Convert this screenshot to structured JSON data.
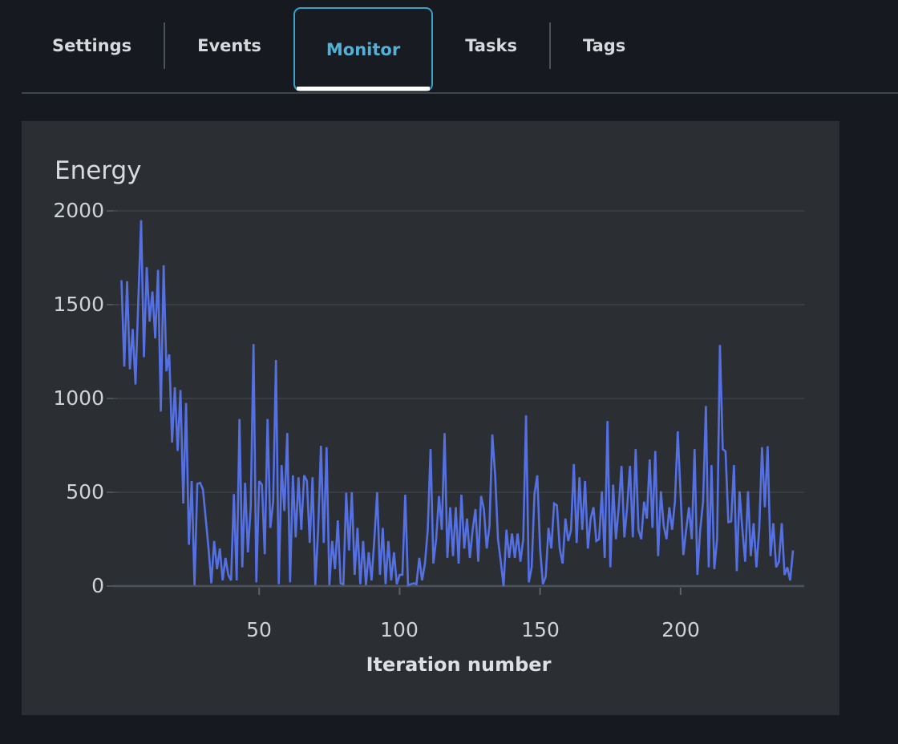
{
  "tabs": [
    {
      "label": "Settings",
      "active": false
    },
    {
      "label": "Events",
      "active": false
    },
    {
      "label": "Monitor",
      "active": true
    },
    {
      "label": "Tasks",
      "active": false
    },
    {
      "label": "Tags",
      "active": false
    }
  ],
  "colors": {
    "accent_cyan": "#52b1d4",
    "focus_border": "#3ba2c6",
    "active_indicator": "#ffffff",
    "panel_bg": "#2b2f34",
    "page_bg": "#16191f",
    "line": "#5470e2",
    "gridline": "#3c4148",
    "zero_line": "#4d535b",
    "tick": "#5c636b"
  },
  "chart_data": {
    "type": "line",
    "title": "Energy",
    "xlabel": "Iteration number",
    "ylabel": "",
    "ylim": [
      0,
      2000
    ],
    "xlim": [
      -2,
      244
    ],
    "x_start": 1,
    "yticks": [
      0,
      500,
      1000,
      1500,
      2000
    ],
    "xticks": [
      50,
      100,
      150,
      200
    ],
    "grid": true,
    "legend": "none",
    "series": [
      {
        "name": "Energy",
        "color": "#5470e2",
        "values": [
          1630,
          1170,
          1625,
          1155,
          1370,
          1075,
          1520,
          1950,
          1220,
          1700,
          1410,
          1570,
          1320,
          1685,
          930,
          1710,
          1145,
          1235,
          765,
          1060,
          720,
          1045,
          440,
          975,
          220,
          560,
          5,
          545,
          550,
          515,
          360,
          200,
          15,
          240,
          90,
          200,
          30,
          150,
          60,
          30,
          490,
          30,
          890,
          100,
          550,
          180,
          420,
          1290,
          20,
          560,
          540,
          170,
          890,
          310,
          450,
          1205,
          10,
          645,
          400,
          816,
          20,
          590,
          260,
          580,
          300,
          590,
          560,
          230,
          580,
          5,
          300,
          748,
          230,
          740,
          5,
          240,
          90,
          350,
          15,
          10,
          497,
          190,
          500,
          60,
          310,
          10,
          240,
          5,
          180,
          30,
          250,
          500,
          60,
          310,
          10,
          240,
          30,
          180,
          10,
          60,
          60,
          487,
          5,
          10,
          15,
          10,
          150,
          30,
          120,
          300,
          730,
          120,
          250,
          480,
          300,
          815,
          150,
          420,
          160,
          420,
          120,
          487,
          200,
          360,
          150,
          300,
          410,
          130,
          480,
          410,
          200,
          320,
          808,
          589,
          250,
          130,
          0,
          300,
          150,
          280,
          150,
          280,
          130,
          250,
          910,
          20,
          100,
          490,
          590,
          200,
          10,
          50,
          310,
          200,
          440,
          430,
          200,
          120,
          360,
          240,
          300,
          650,
          230,
          580,
          300,
          560,
          200,
          360,
          420,
          240,
          250,
          505,
          150,
          880,
          100,
          540,
          250,
          420,
          640,
          260,
          420,
          640,
          260,
          730,
          300,
          250,
          450,
          360,
          675,
          310,
          720,
          160,
          505,
          320,
          250,
          420,
          300,
          450,
          825,
          490,
          165,
          300,
          420,
          250,
          730,
          60,
          300,
          450,
          960,
          100,
          645,
          90,
          250,
          1285,
          730,
          718,
          340,
          345,
          645,
          80,
          505,
          300,
          130,
          505,
          160,
          335,
          100,
          300,
          740,
          420,
          745,
          160,
          335,
          100,
          130,
          335,
          60,
          100,
          30,
          190
        ]
      }
    ]
  }
}
